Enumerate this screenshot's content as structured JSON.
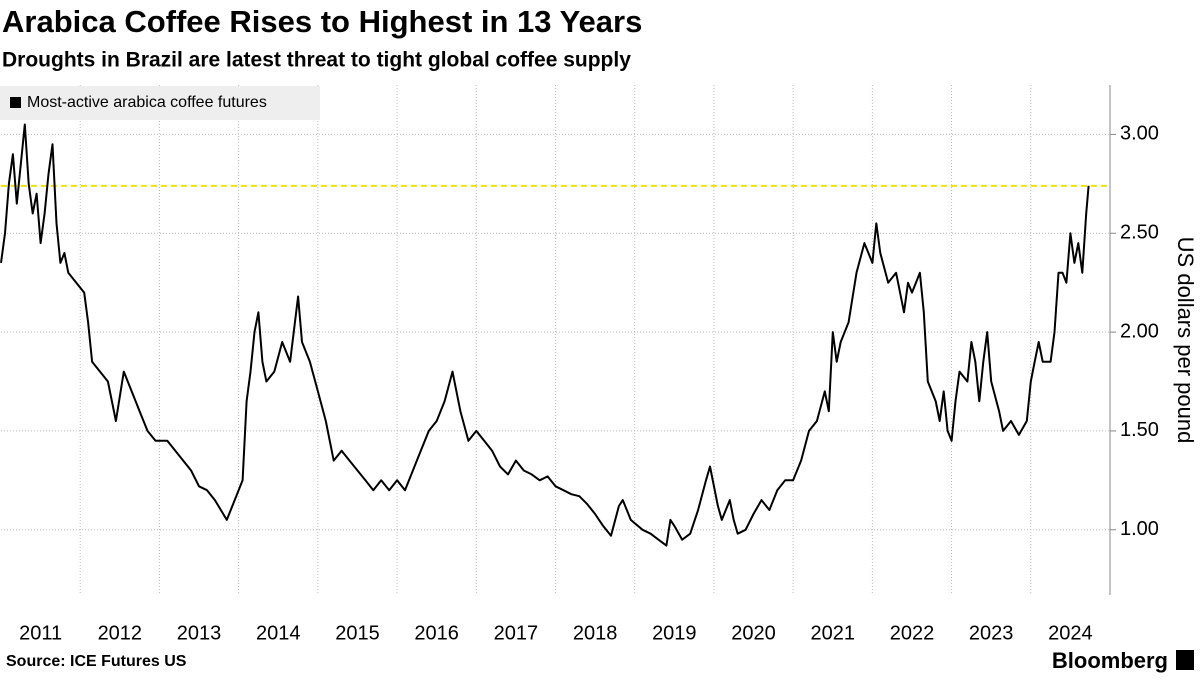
{
  "chart_data": {
    "type": "line",
    "title": "Arabica Coffee Rises to Highest in 13 Years",
    "subtitle": "Droughts in Brazil are latest threat to tight global coffee supply",
    "y_label": "US dollars per pound",
    "source": "Source: ICE Futures US",
    "brand": "Bloomberg",
    "x": [
      2011.0,
      2011.05,
      2011.1,
      2011.15,
      2011.2,
      2011.25,
      2011.3,
      2011.35,
      2011.4,
      2011.45,
      2011.5,
      2011.55,
      2011.6,
      2011.65,
      2011.7,
      2011.75,
      2011.8,
      2011.85,
      2011.95,
      2012.05,
      2012.1,
      2012.15,
      2012.25,
      2012.35,
      2012.45,
      2012.55,
      2012.65,
      2012.75,
      2012.85,
      2012.95,
      2013.1,
      2013.2,
      2013.3,
      2013.4,
      2013.5,
      2013.6,
      2013.7,
      2013.85,
      2013.95,
      2014.05,
      2014.1,
      2014.15,
      2014.2,
      2014.25,
      2014.3,
      2014.35,
      2014.45,
      2014.55,
      2014.65,
      2014.75,
      2014.8,
      2014.9,
      2015.0,
      2015.1,
      2015.2,
      2015.3,
      2015.4,
      2015.5,
      2015.6,
      2015.7,
      2015.8,
      2015.9,
      2016.0,
      2016.1,
      2016.2,
      2016.3,
      2016.4,
      2016.5,
      2016.6,
      2016.7,
      2016.8,
      2016.9,
      2017.0,
      2017.1,
      2017.2,
      2017.3,
      2017.4,
      2017.5,
      2017.6,
      2017.7,
      2017.8,
      2017.9,
      2018.0,
      2018.1,
      2018.2,
      2018.3,
      2018.4,
      2018.5,
      2018.6,
      2018.7,
      2018.8,
      2018.85,
      2018.95,
      2019.1,
      2019.2,
      2019.3,
      2019.4,
      2019.45,
      2019.5,
      2019.6,
      2019.7,
      2019.8,
      2019.9,
      2019.95,
      2020.05,
      2020.1,
      2020.2,
      2020.25,
      2020.3,
      2020.4,
      2020.5,
      2020.6,
      2020.7,
      2020.8,
      2020.9,
      2021.0,
      2021.1,
      2021.2,
      2021.3,
      2021.4,
      2021.45,
      2021.5,
      2021.55,
      2021.6,
      2021.7,
      2021.8,
      2021.9,
      2022.0,
      2022.05,
      2022.1,
      2022.2,
      2022.3,
      2022.4,
      2022.45,
      2022.5,
      2022.6,
      2022.65,
      2022.7,
      2022.8,
      2022.85,
      2022.9,
      2022.95,
      2023.0,
      2023.05,
      2023.1,
      2023.2,
      2023.25,
      2023.3,
      2023.35,
      2023.4,
      2023.45,
      2023.5,
      2023.6,
      2023.65,
      2023.75,
      2023.85,
      2023.95,
      2024.0,
      2024.05,
      2024.1,
      2024.15,
      2024.25,
      2024.3,
      2024.35,
      2024.4,
      2024.45,
      2024.5,
      2024.55,
      2024.6,
      2024.65,
      2024.7,
      2024.73
    ],
    "series": [
      {
        "name": "Most-active arabica coffee futures",
        "color": "#000000",
        "values": [
          2.35,
          2.5,
          2.75,
          2.9,
          2.65,
          2.85,
          3.05,
          2.75,
          2.6,
          2.7,
          2.45,
          2.6,
          2.8,
          2.95,
          2.55,
          2.35,
          2.4,
          2.3,
          2.25,
          2.2,
          2.05,
          1.85,
          1.8,
          1.75,
          1.55,
          1.8,
          1.7,
          1.6,
          1.5,
          1.45,
          1.45,
          1.4,
          1.35,
          1.3,
          1.22,
          1.2,
          1.15,
          1.05,
          1.15,
          1.25,
          1.65,
          1.8,
          2.0,
          2.1,
          1.85,
          1.75,
          1.8,
          1.95,
          1.85,
          2.18,
          1.95,
          1.85,
          1.7,
          1.55,
          1.35,
          1.4,
          1.35,
          1.3,
          1.25,
          1.2,
          1.25,
          1.2,
          1.25,
          1.2,
          1.3,
          1.4,
          1.5,
          1.55,
          1.65,
          1.8,
          1.6,
          1.45,
          1.5,
          1.45,
          1.4,
          1.32,
          1.28,
          1.35,
          1.3,
          1.28,
          1.25,
          1.27,
          1.22,
          1.2,
          1.18,
          1.17,
          1.13,
          1.08,
          1.02,
          0.97,
          1.12,
          1.15,
          1.05,
          1.0,
          0.98,
          0.95,
          0.92,
          1.05,
          1.02,
          0.95,
          0.98,
          1.1,
          1.25,
          1.32,
          1.12,
          1.05,
          1.15,
          1.05,
          0.98,
          1.0,
          1.08,
          1.15,
          1.1,
          1.2,
          1.25,
          1.25,
          1.35,
          1.5,
          1.55,
          1.7,
          1.6,
          2.0,
          1.85,
          1.95,
          2.05,
          2.3,
          2.45,
          2.35,
          2.55,
          2.4,
          2.25,
          2.3,
          2.1,
          2.25,
          2.2,
          2.3,
          2.1,
          1.75,
          1.65,
          1.55,
          1.7,
          1.5,
          1.45,
          1.65,
          1.8,
          1.75,
          1.95,
          1.85,
          1.65,
          1.85,
          2.0,
          1.75,
          1.6,
          1.5,
          1.55,
          1.48,
          1.55,
          1.75,
          1.85,
          1.95,
          1.85,
          1.85,
          2.0,
          2.3,
          2.3,
          2.25,
          2.5,
          2.35,
          2.45,
          2.3,
          2.6,
          2.74
        ]
      }
    ],
    "reference_line": {
      "value": 2.74,
      "color": "#f2e200"
    },
    "xlim": [
      2011,
      2025
    ],
    "xticks": [
      {
        "value": 2011.5,
        "label": "2011"
      },
      {
        "value": 2012.5,
        "label": "2012"
      },
      {
        "value": 2013.5,
        "label": "2013"
      },
      {
        "value": 2014.5,
        "label": "2014"
      },
      {
        "value": 2015.5,
        "label": "2015"
      },
      {
        "value": 2016.5,
        "label": "2016"
      },
      {
        "value": 2017.5,
        "label": "2017"
      },
      {
        "value": 2018.5,
        "label": "2018"
      },
      {
        "value": 2019.5,
        "label": "2019"
      },
      {
        "value": 2020.5,
        "label": "2020"
      },
      {
        "value": 2021.5,
        "label": "2021"
      },
      {
        "value": 2022.5,
        "label": "2022"
      },
      {
        "value": 2023.5,
        "label": "2023"
      },
      {
        "value": 2024.5,
        "label": "2024"
      }
    ],
    "ylim": [
      0.67,
      3.25
    ],
    "yticks": [
      {
        "value": 1,
        "label": "1.00"
      },
      {
        "value": 1.5,
        "label": "1.50"
      },
      {
        "value": 2,
        "label": "2.00"
      },
      {
        "value": 2.5,
        "label": "2.50"
      },
      {
        "value": 3,
        "label": "3.00"
      }
    ],
    "grid": true,
    "legend": "top-left"
  }
}
